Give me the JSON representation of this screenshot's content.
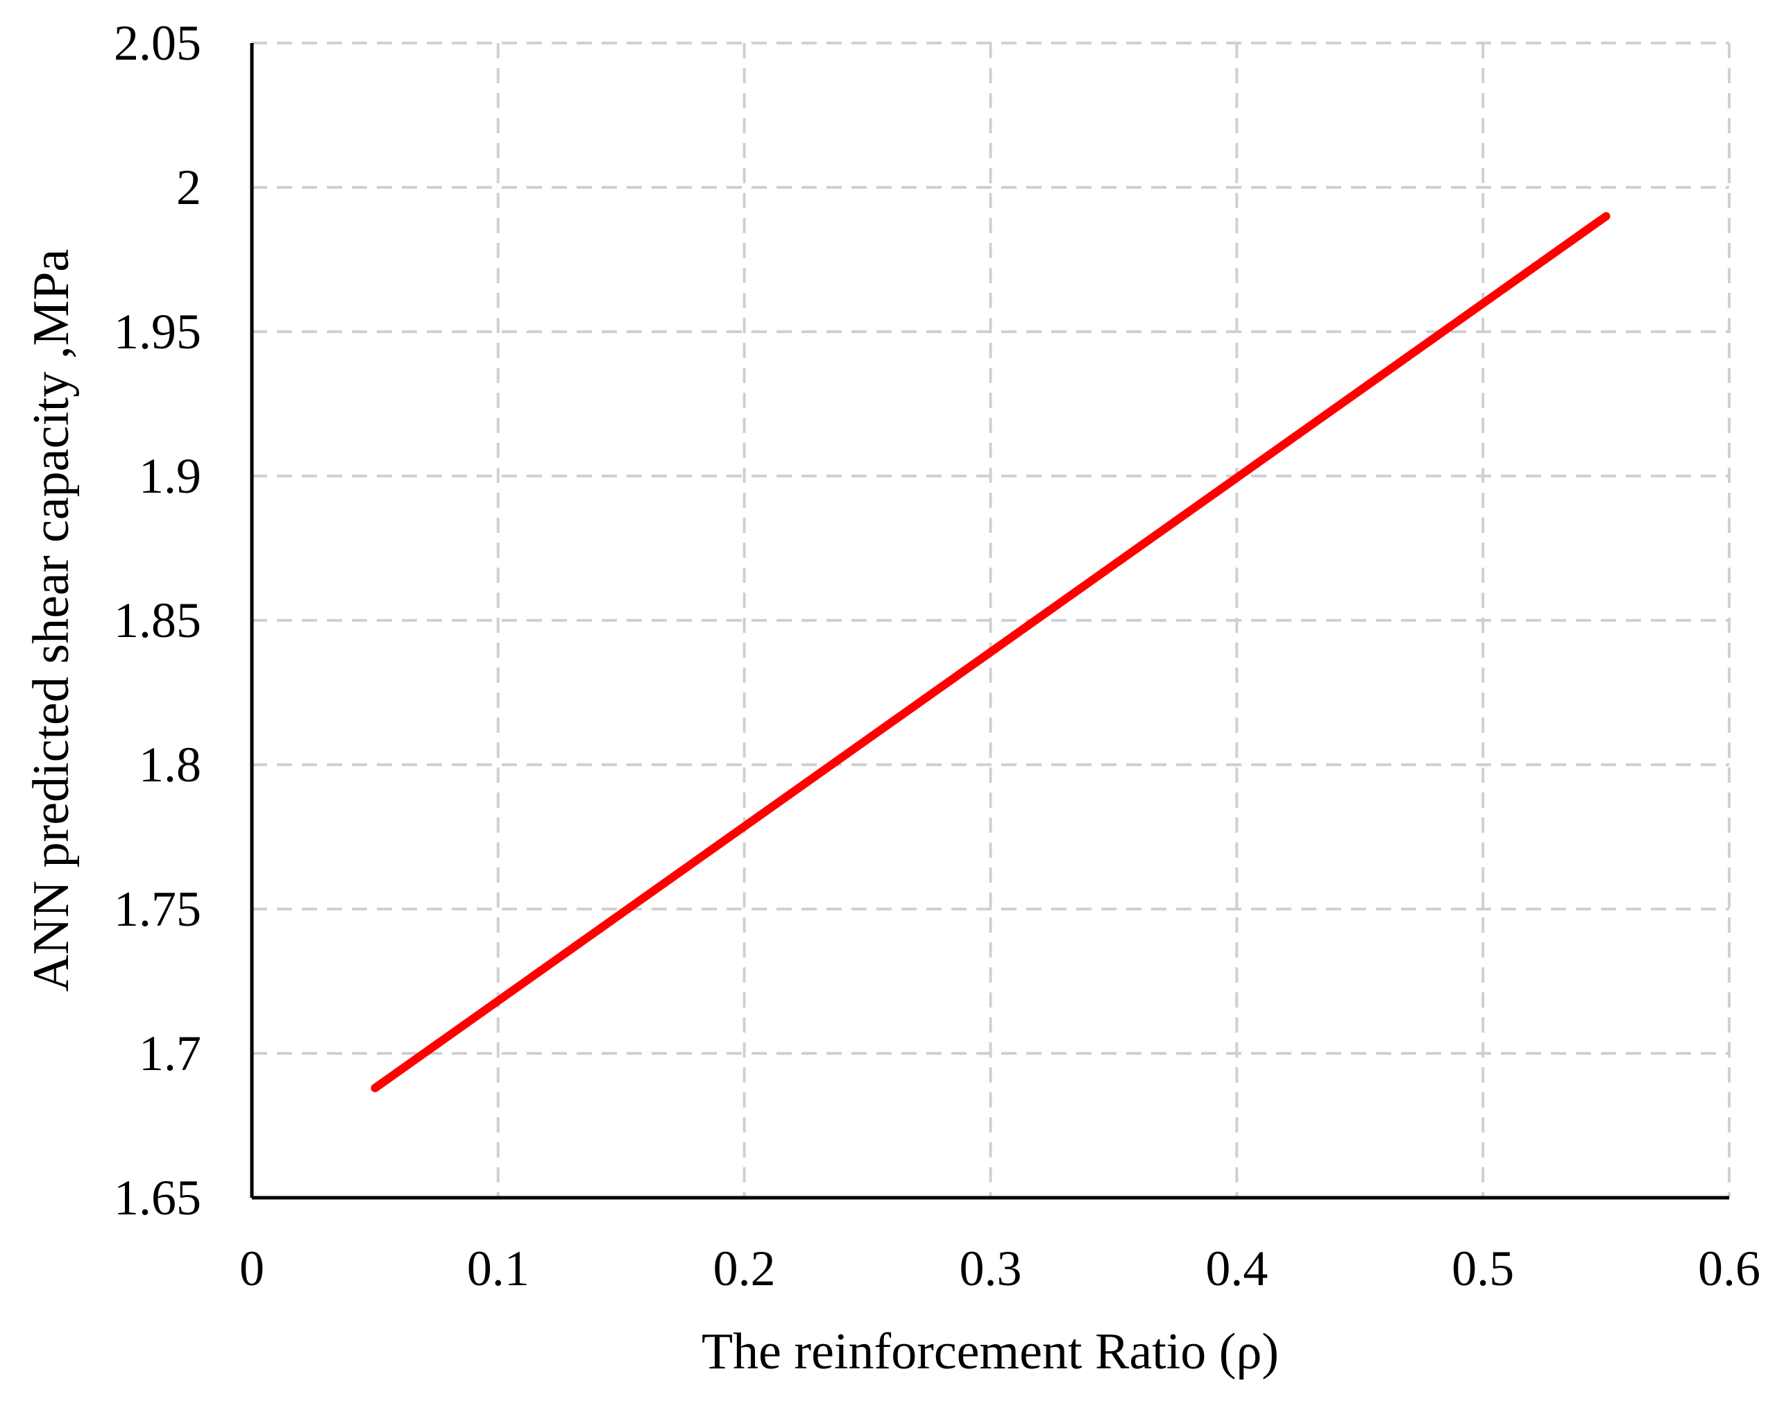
{
  "chart_data": {
    "type": "line",
    "title": "",
    "xlabel": "The reinforcement Ratio (ρ)",
    "ylabel": "ANN predicted shear capacity ,MPa",
    "xlim": [
      0,
      0.6
    ],
    "ylim": [
      1.65,
      2.05
    ],
    "x_ticks": [
      "0",
      "0.1",
      "0.2",
      "0.3",
      "0.4",
      "0.5",
      "0.6"
    ],
    "y_ticks": [
      "1.65",
      "1.7",
      "1.75",
      "1.8",
      "1.85",
      "1.9",
      "1.95",
      "2",
      "2.05"
    ],
    "grid": true,
    "grid_style": "dashed",
    "legend": "none",
    "series": [
      {
        "color": "#ff0000",
        "points": [
          {
            "x": 0.05,
            "y": 1.688
          },
          {
            "x": 0.55,
            "y": 1.99
          }
        ]
      }
    ]
  }
}
